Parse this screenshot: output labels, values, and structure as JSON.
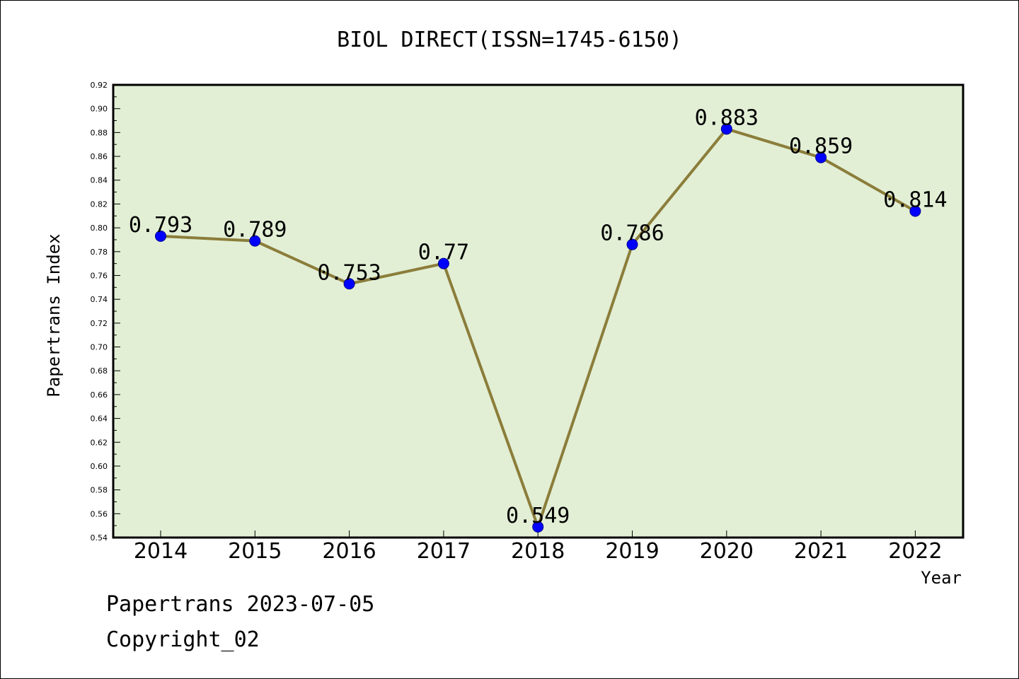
{
  "chart_data": {
    "type": "line",
    "title": "BIOL DIRECT(ISSN=1745-6150)",
    "xlabel": "Year",
    "ylabel": "Papertrans Index",
    "categories": [
      "2014",
      "2015",
      "2016",
      "2017",
      "2018",
      "2019",
      "2020",
      "2021",
      "2022"
    ],
    "values": [
      0.793,
      0.789,
      0.753,
      0.77,
      0.549,
      0.786,
      0.883,
      0.859,
      0.814
    ],
    "data_labels": [
      "0.793",
      "0.789",
      "0.753",
      "0.77",
      "0.549",
      "0.786",
      "0.883",
      "0.859",
      "0.814"
    ],
    "ylim": [
      0.54,
      0.92
    ],
    "yticks": [
      "0.54",
      "0.56",
      "0.58",
      "0.60",
      "0.62",
      "0.64",
      "0.66",
      "0.68",
      "0.70",
      "0.72",
      "0.74",
      "0.76",
      "0.78",
      "0.80",
      "0.82",
      "0.84",
      "0.86",
      "0.88",
      "0.90",
      "0.92"
    ],
    "grid": false,
    "legend": "none",
    "colors": {
      "plot_background": "#e2efd5",
      "line": "#8b7d3a",
      "marker": "#0000ff"
    }
  },
  "footer": {
    "line1": "Papertrans 2023-07-05",
    "line2": "Copyright_02"
  }
}
